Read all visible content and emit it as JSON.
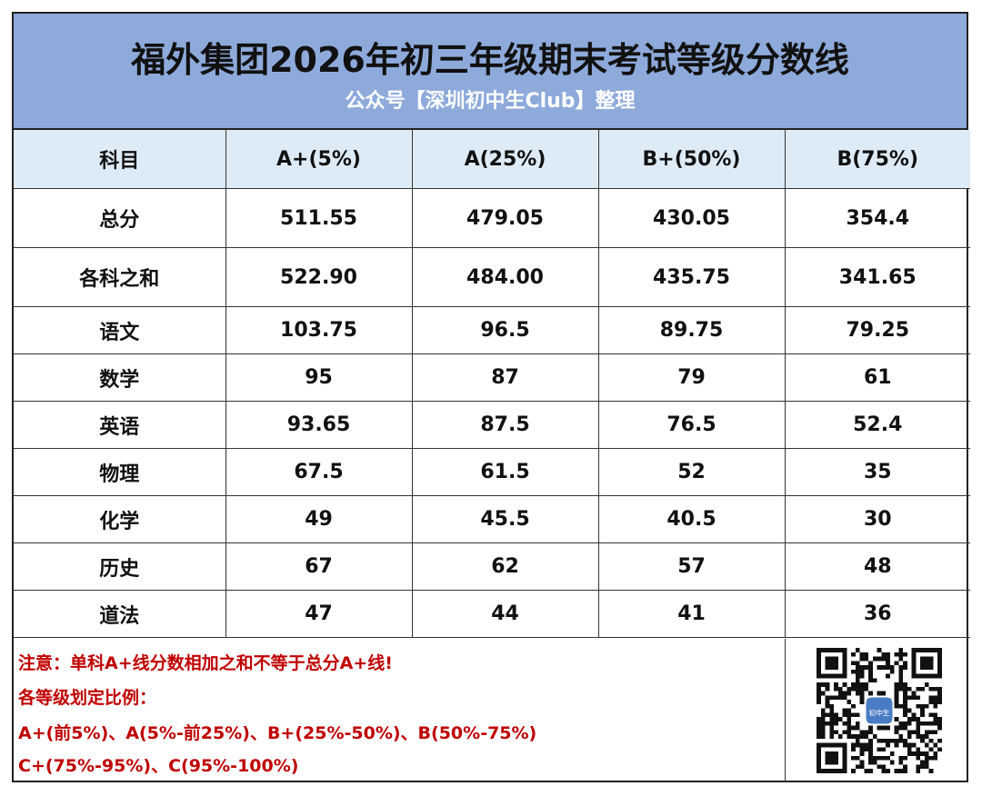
{
  "header": {
    "title": "福外集团2026年初三年级期末考试等级分数线",
    "subtitle": "公众号【深圳初中生Club】整理"
  },
  "table": {
    "columns": [
      "科目",
      "A+(5%)",
      "A(25%)",
      "B+(50%)",
      "B(75%)"
    ],
    "rows": [
      [
        "总分",
        "511.55",
        "479.05",
        "430.05",
        "354.4"
      ],
      [
        "各科之和",
        "522.90",
        "484.00",
        "435.75",
        "341.65"
      ],
      [
        "语文",
        "103.75",
        "96.5",
        "89.75",
        "79.25"
      ],
      [
        "数学",
        "95",
        "87",
        "79",
        "61"
      ],
      [
        "英语",
        "93.65",
        "87.5",
        "76.5",
        "52.4"
      ],
      [
        "物理",
        "67.5",
        "61.5",
        "52",
        "35"
      ],
      [
        "化学",
        "49",
        "45.5",
        "40.5",
        "30"
      ],
      [
        "历史",
        "67",
        "62",
        "57",
        "48"
      ],
      [
        "道法",
        "47",
        "44",
        "41",
        "36"
      ]
    ]
  },
  "notes": [
    "注意：单科A+线分数相加之和不等于总分A+线!",
    "各等级划定比例：",
    "A+(前5%)、A(5%-前25%)、B+(25%-50%)、B(50%-75%)",
    "C+(75%-95%)、C(95%-100%)"
  ],
  "qr": {
    "center_label": "初中生",
    "icon": "qr-code-icon"
  },
  "colors": {
    "title_bg": "#8eaadb",
    "header_bg": "#ddebf7",
    "note_text": "#c00000",
    "subtitle_text": "#ffffff"
  }
}
